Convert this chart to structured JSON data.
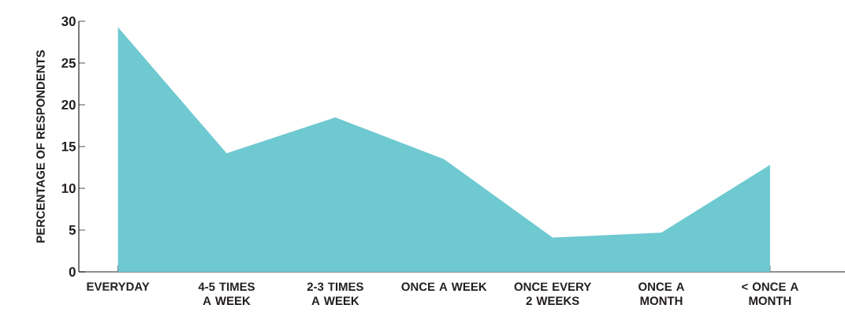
{
  "chart_data": {
    "type": "area",
    "ylabel": "PERCENTAGE OF RESPONDENTS",
    "categories": [
      "EVERYDAY",
      "4-5 TIMES A WEEK",
      "2-3 TIMES A WEEK",
      "ONCE A WEEK",
      "ONCE EVERY 2 WEEKS",
      "ONCE A MONTH",
      "< ONCE A MONTH"
    ],
    "values": [
      29.3,
      14.2,
      18.5,
      13.5,
      4.1,
      4.7,
      12.8
    ],
    "color": "#6ec9d1",
    "ylim": [
      0,
      30
    ],
    "yticks": [
      0,
      5,
      10,
      15,
      20,
      25,
      30
    ],
    "grid": false
  }
}
